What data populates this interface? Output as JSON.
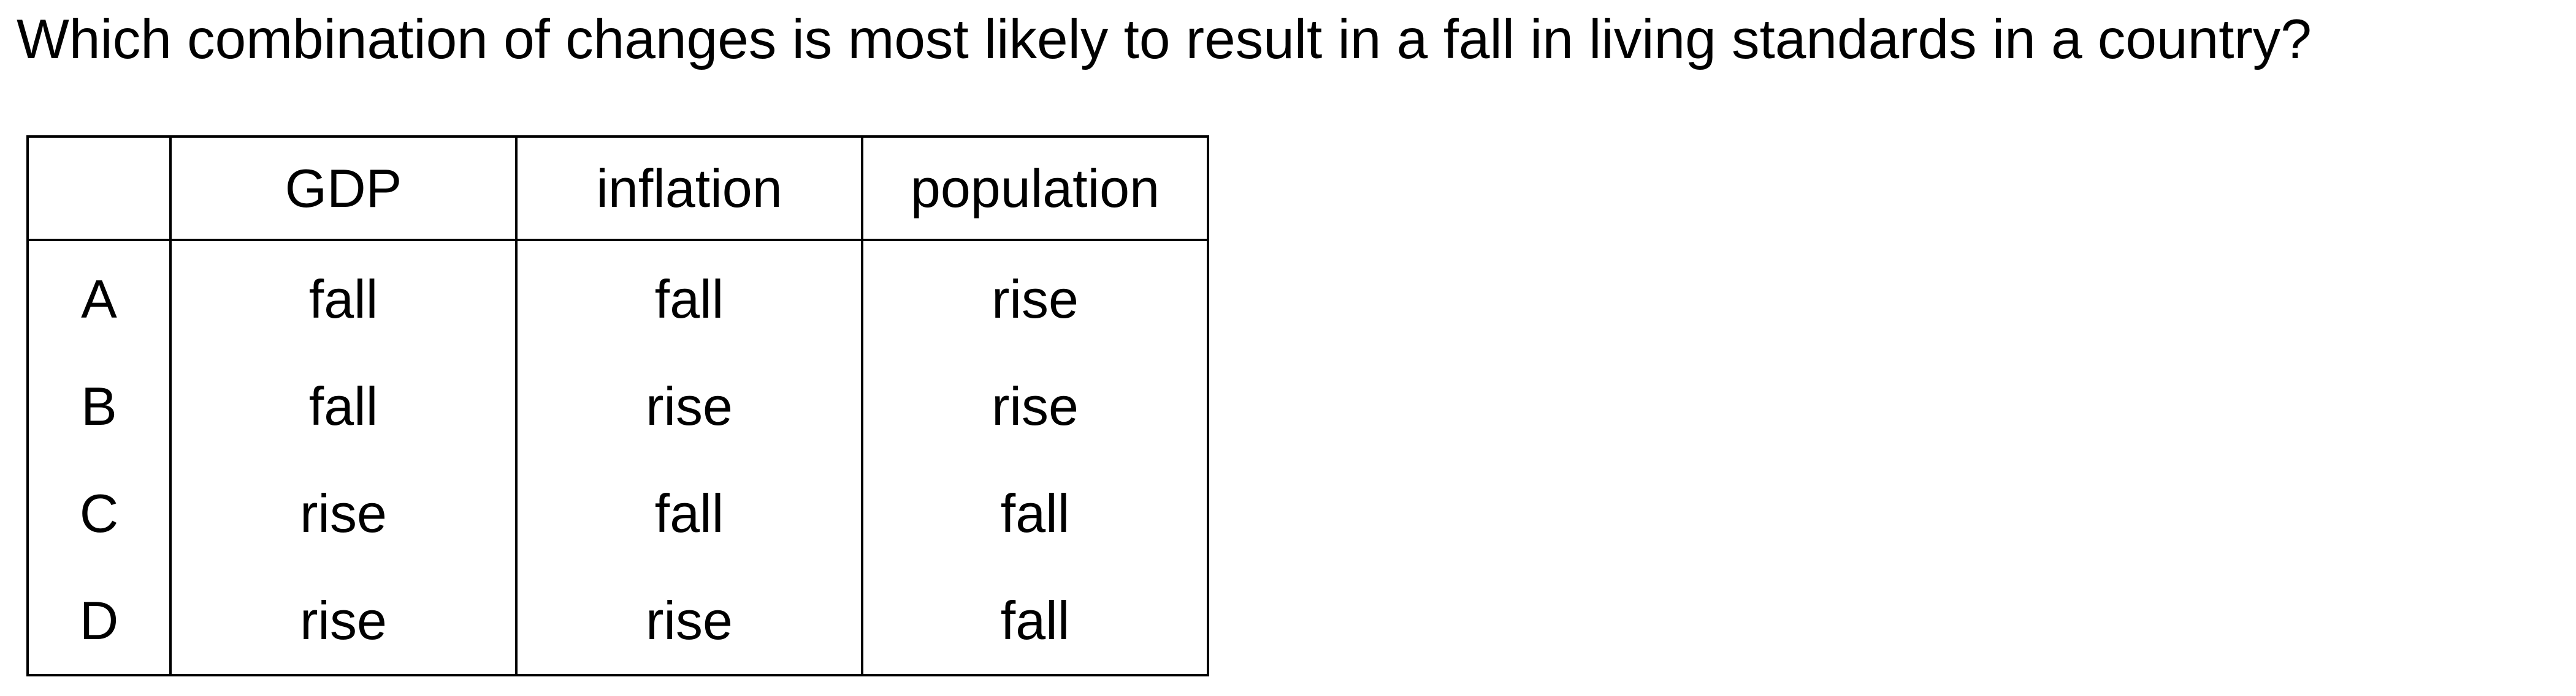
{
  "question": "Which combination of changes is most likely to result in a fall in living standards in a country?",
  "table": {
    "headers": [
      "",
      "GDP",
      "inflation",
      "population"
    ],
    "rows": [
      {
        "key": "A",
        "gdp": "fall",
        "inflation": "fall",
        "population": "rise"
      },
      {
        "key": "B",
        "gdp": "fall",
        "inflation": "rise",
        "population": "rise"
      },
      {
        "key": "C",
        "gdp": "rise",
        "inflation": "fall",
        "population": "fall"
      },
      {
        "key": "D",
        "gdp": "rise",
        "inflation": "rise",
        "population": "fall"
      }
    ]
  }
}
